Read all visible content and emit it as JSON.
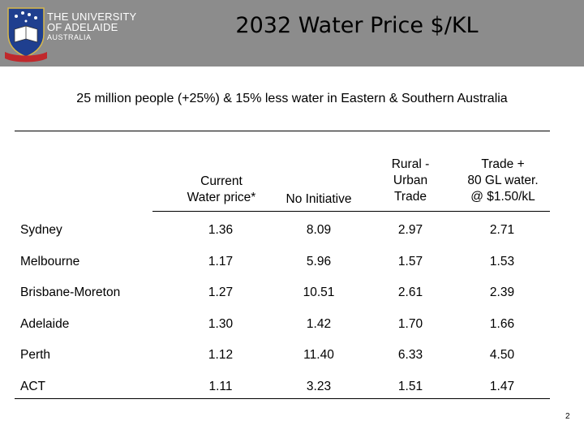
{
  "header": {
    "university_line1": "THE UNIVERSITY",
    "university_line2": "OF ADELAIDE",
    "university_line3": "AUSTRALIA",
    "title": "2032 Water Price $/KL"
  },
  "subtitle": "25 million people (+25%)  & 15% less water in Eastern & Southern Australia",
  "table": {
    "columns": [
      [
        "Current",
        "Water price*"
      ],
      [
        "No Initiative"
      ],
      [
        "Rural -",
        "Urban",
        "Trade"
      ],
      [
        "Trade +",
        "80 GL water.",
        "@ $1.50/kL"
      ]
    ],
    "rows": [
      {
        "city": "Sydney",
        "values": [
          "1.36",
          "8.09",
          "2.97",
          "2.71"
        ]
      },
      {
        "city": "Melbourne",
        "values": [
          "1.17",
          "5.96",
          "1.57",
          "1.53"
        ]
      },
      {
        "city": "Brisbane-Moreton",
        "values": [
          "1.27",
          "10.51",
          "2.61",
          "2.39"
        ]
      },
      {
        "city": "Adelaide",
        "values": [
          "1.30",
          "1.42",
          "1.70",
          "1.66"
        ]
      },
      {
        "city": "Perth",
        "values": [
          "1.12",
          "11.40",
          "6.33",
          "4.50"
        ]
      },
      {
        "city": "ACT",
        "values": [
          "1.11",
          "3.23",
          "1.51",
          "1.47"
        ]
      }
    ]
  },
  "page_number": "2",
  "colors": {
    "header_bg": "#8c8c8c",
    "shield_blue": "#1f3f8f",
    "ribbon_red": "#c0282c"
  }
}
